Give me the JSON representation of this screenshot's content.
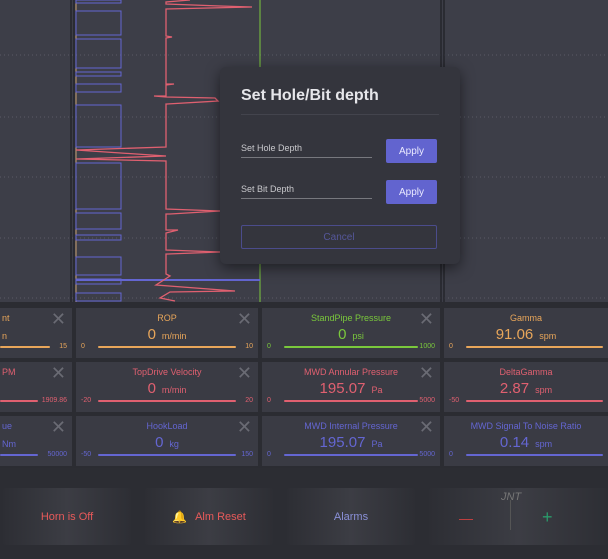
{
  "colors": {
    "orange": "#e8a65a",
    "red": "#e06070",
    "green": "#7ac83c",
    "purple": "#6466d2",
    "bg": "#3d3e48"
  },
  "dialog": {
    "title": "Set Hole/Bit depth",
    "hole_placeholder": "Set Hole Depth",
    "bit_placeholder": "Set Bit Depth",
    "apply": "Apply",
    "cancel": "Cancel"
  },
  "gauges": [
    {
      "label": "nt",
      "value": "",
      "unit": "n",
      "min": "",
      "max": "15",
      "color": "orange",
      "closable": true
    },
    {
      "label": "ROP",
      "value": "0",
      "unit": "m/min",
      "min": "0",
      "max": "10",
      "color": "orange",
      "closable": true
    },
    {
      "label": "StandPipe Pressure",
      "value": "0",
      "unit": "psi",
      "min": "0",
      "max": "1000",
      "color": "green",
      "closable": true
    },
    {
      "label": "Gamma",
      "value": "91.06",
      "unit": "spm",
      "min": "0",
      "max": "",
      "color": "orange",
      "closable": false
    },
    {
      "label": "PM",
      "value": "",
      "unit": "",
      "min": "",
      "max": "1909.86",
      "color": "red",
      "closable": true
    },
    {
      "label": "TopDrive Velocity",
      "value": "0",
      "unit": "m/min",
      "min": "-20",
      "max": "20",
      "color": "red",
      "closable": true
    },
    {
      "label": "MWD Annular Pressure",
      "value": "195.07",
      "unit": "Pa",
      "min": "0",
      "max": "5000",
      "color": "red",
      "closable": true
    },
    {
      "label": "DeltaGamma",
      "value": "2.87",
      "unit": "spm",
      "min": "-50",
      "max": "",
      "color": "red",
      "closable": false
    },
    {
      "label": "ue",
      "value": "",
      "unit": "Nm",
      "min": "",
      "max": "50000",
      "color": "purple",
      "closable": true
    },
    {
      "label": "HookLoad",
      "value": "0",
      "unit": "kg",
      "min": "-50",
      "max": "150",
      "color": "purple",
      "closable": true
    },
    {
      "label": "MWD Internal Pressure",
      "value": "195.07",
      "unit": "Pa",
      "min": "0",
      "max": "5000",
      "color": "purple",
      "closable": true
    },
    {
      "label": "MWD Signal To Noise Ratio",
      "value": "0.14",
      "unit": "spm",
      "min": "0",
      "max": "",
      "color": "purple",
      "closable": false
    }
  ],
  "bottom": {
    "horn": "Horn is Off",
    "alm_reset": "Alm Reset",
    "alarms": "Alarms",
    "jnt": "JNT",
    "minus": "—",
    "plus": "+"
  }
}
